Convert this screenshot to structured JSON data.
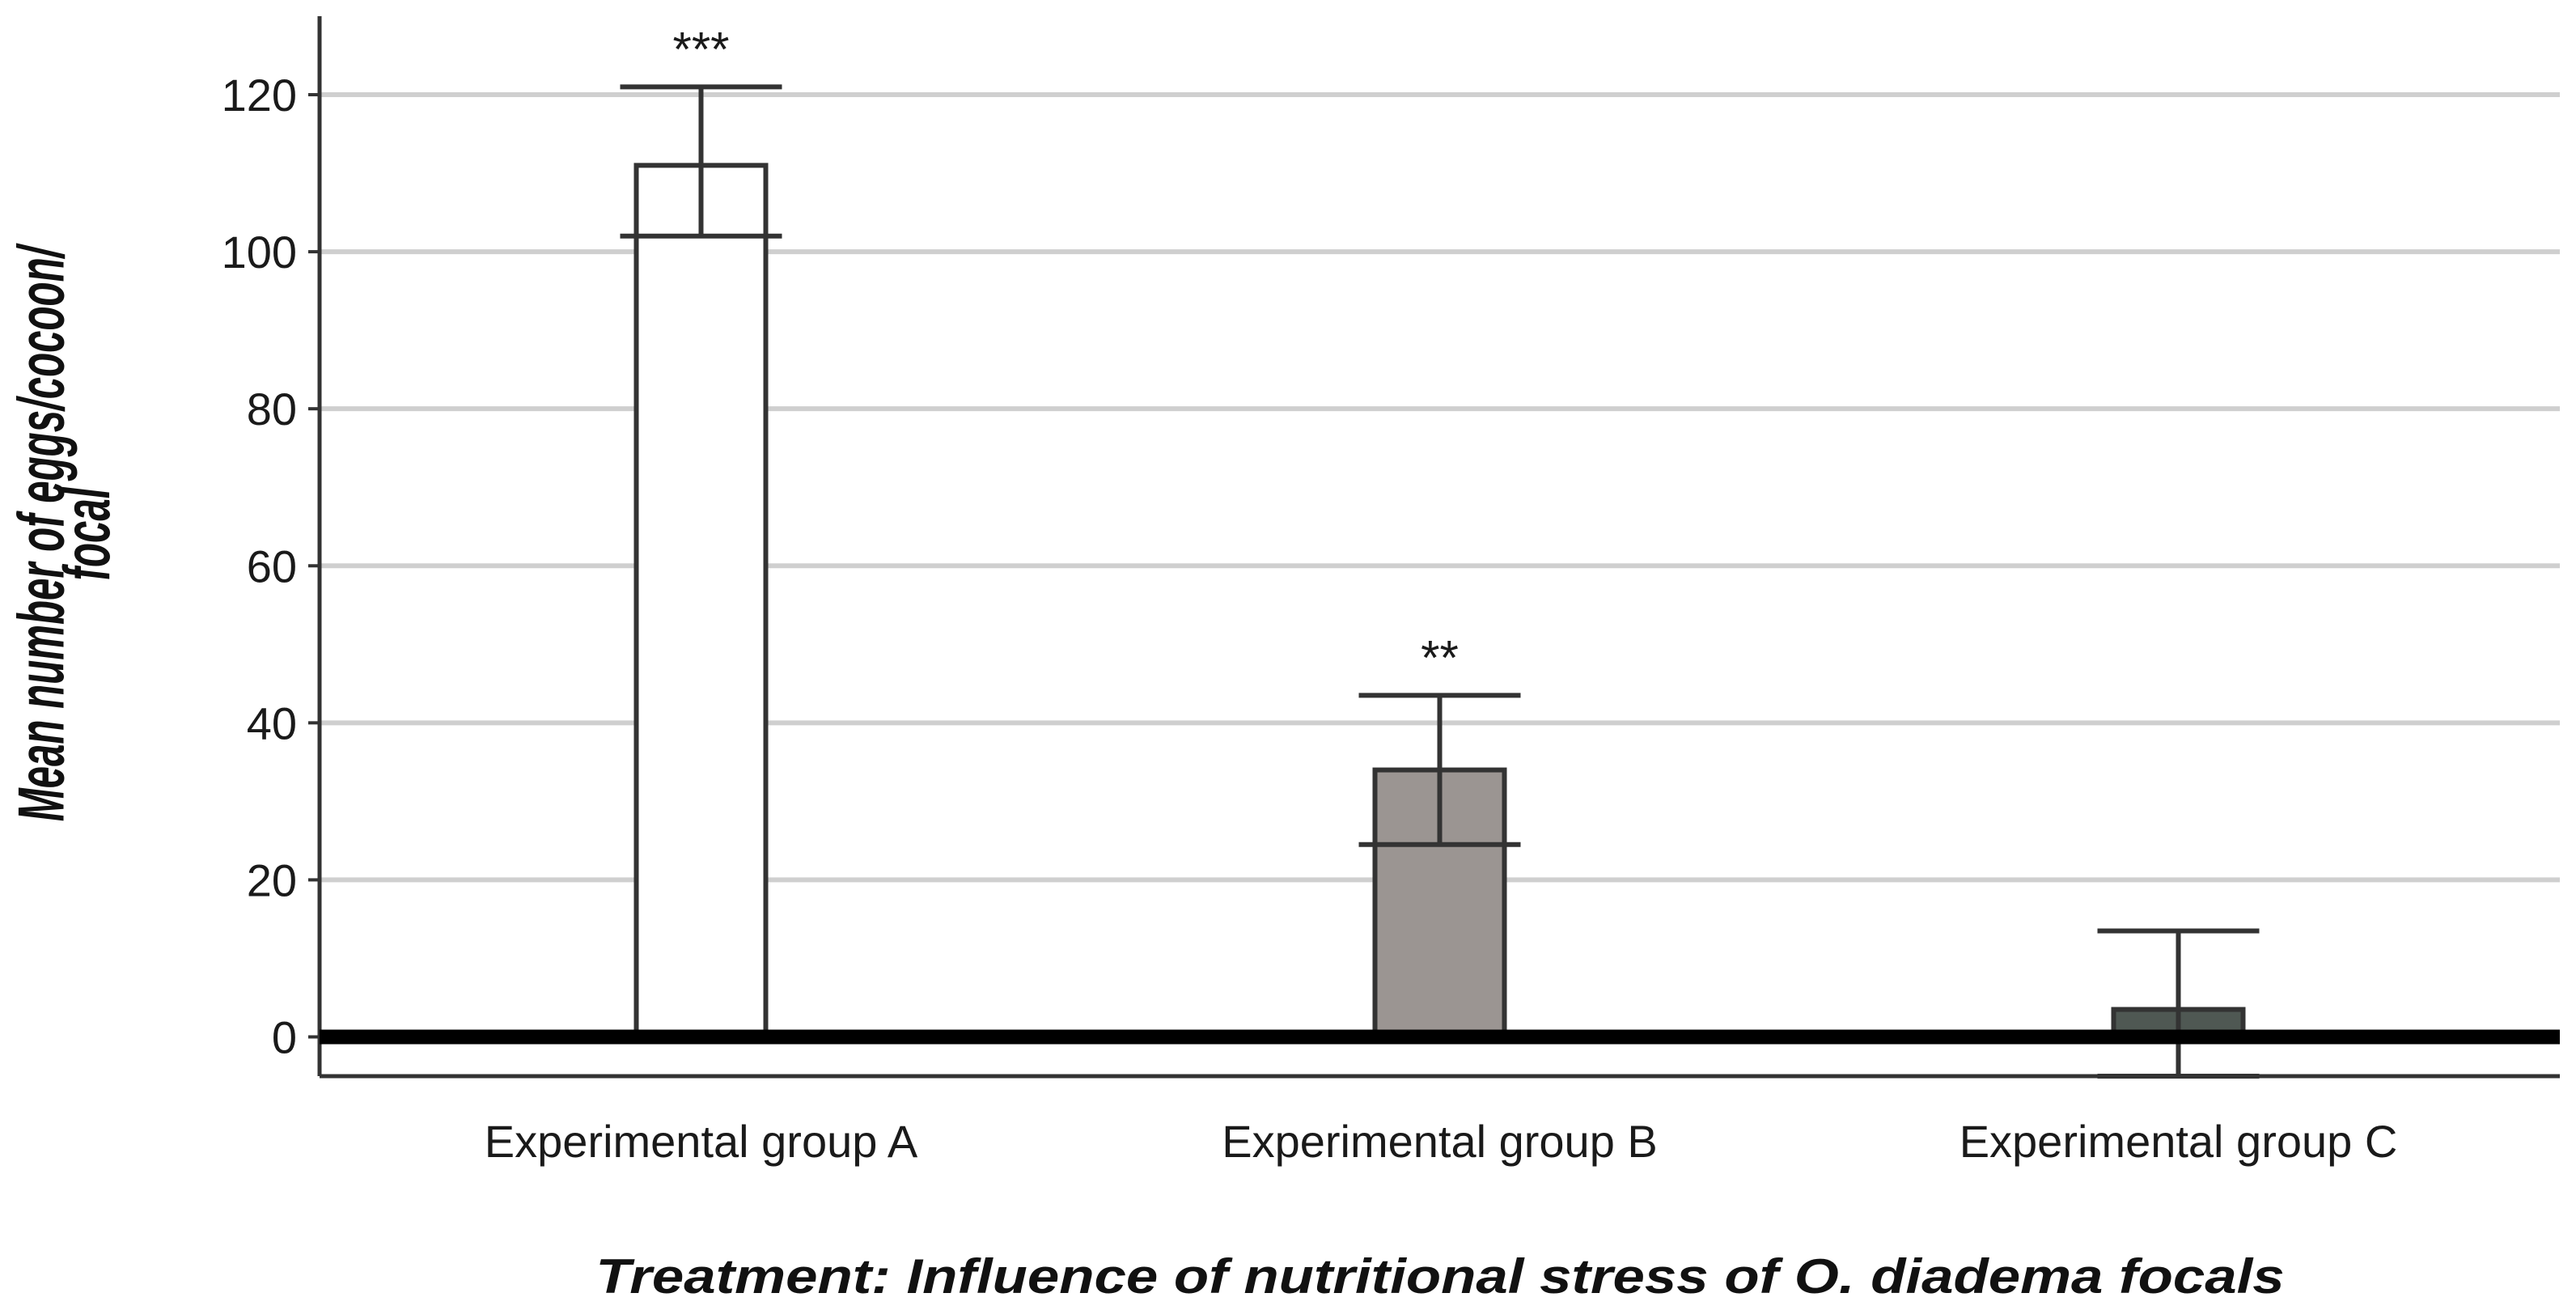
{
  "chart_data": {
    "type": "bar",
    "title": "",
    "xlabel": "Treatment: Influence of nutritional stress of O. diadema focals",
    "ylabel_lines": [
      "Mean number of eggs/cocoon/",
      "focal"
    ],
    "ylim": [
      -5,
      130
    ],
    "yticks": [
      0,
      20,
      40,
      60,
      80,
      100,
      120
    ],
    "grid": true,
    "categories": [
      "Experimental group A",
      "Experimental group B",
      "Experimental group C"
    ],
    "values": [
      111,
      34,
      3.5
    ],
    "error_low": [
      102,
      24.5,
      -5
    ],
    "error_high": [
      121,
      43.5,
      13.5
    ],
    "significance": [
      "***",
      "**",
      ""
    ],
    "colors": [
      "#ffffff",
      "#9b9592",
      "#4f5853"
    ]
  }
}
